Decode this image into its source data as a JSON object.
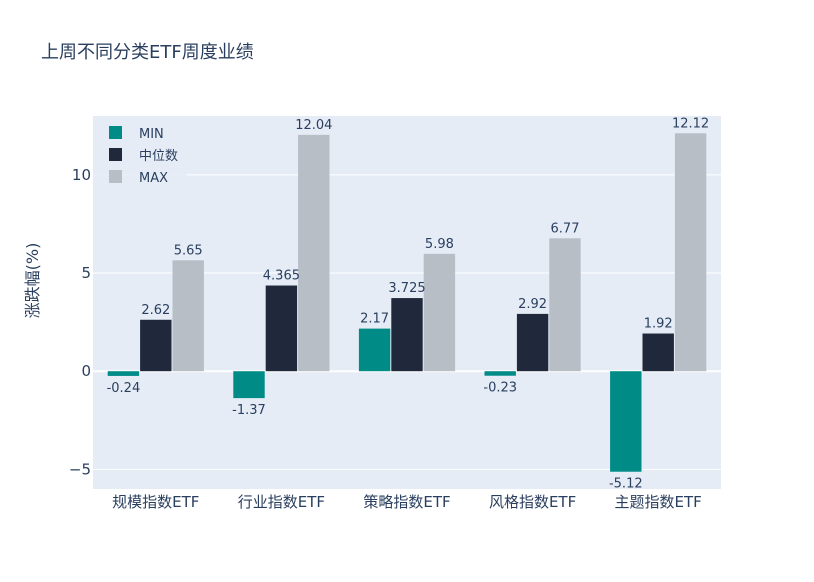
{
  "chart_data": {
    "type": "bar",
    "title": "上周不同分类ETF周度业绩",
    "xlabel": "",
    "ylabel": "涨跌幅(%)",
    "categories": [
      "规模指数ETF",
      "行业指数ETF",
      "策略指数ETF",
      "风格指数ETF",
      "主题指数ETF"
    ],
    "series": [
      {
        "name": "MIN",
        "color": "#008b87",
        "values": [
          -0.24,
          -1.37,
          2.17,
          -0.23,
          -5.12
        ],
        "labels": [
          "-0.24",
          "-1.37",
          "2.17",
          "-0.23",
          "-5.12"
        ]
      },
      {
        "name": "中位数",
        "color": "#1f293b",
        "values": [
          2.62,
          4.365,
          3.725,
          2.92,
          1.92
        ],
        "labels": [
          "2.62",
          "4.365",
          "3.725",
          "2.92",
          "1.92"
        ]
      },
      {
        "name": "MAX",
        "color": "#b7bec6",
        "values": [
          5.65,
          12.04,
          5.98,
          6.77,
          12.12
        ],
        "labels": [
          "5.65",
          "12.04",
          "5.98",
          "6.77",
          "12.12"
        ]
      }
    ],
    "ylim": [
      -6.0,
      13.0
    ],
    "yticks": [
      -5,
      0,
      5,
      10
    ],
    "ytick_labels": [
      "−5",
      "0",
      "5",
      "10"
    ],
    "grid": true,
    "legend_position": "top-left",
    "plot_background": "#e5ecf6"
  }
}
